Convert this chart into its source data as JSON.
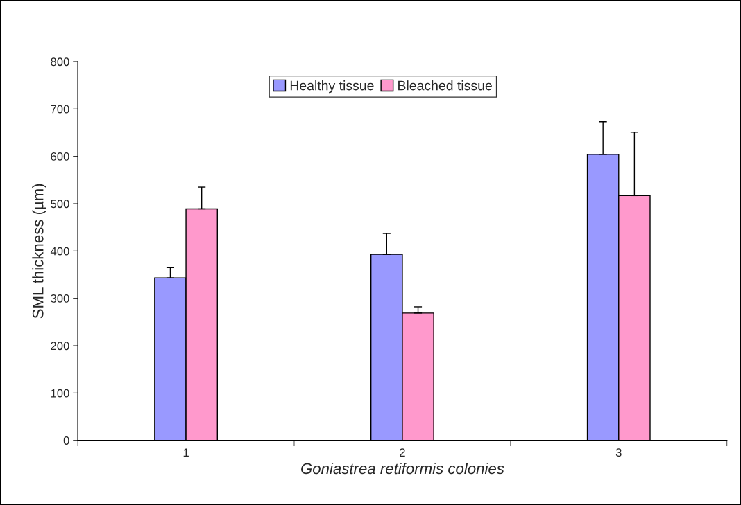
{
  "chart_data": {
    "type": "bar",
    "xlabel": "Goniastrea retiformis colonies",
    "ylabel": "SML thickness (µm)",
    "categories": [
      "1",
      "2",
      "3"
    ],
    "series": [
      {
        "name": "Healthy tissue",
        "color": "#9999ff",
        "values": [
          343,
          393,
          604
        ],
        "errors": [
          [
            343,
            365
          ],
          [
            393,
            437
          ],
          [
            604,
            673
          ]
        ]
      },
      {
        "name": "Bleached tissue",
        "color": "#ff99cc",
        "values": [
          489,
          269,
          517
        ],
        "errors": [
          [
            489,
            535
          ],
          [
            269,
            282
          ],
          [
            517,
            651
          ]
        ]
      }
    ],
    "ylim": [
      0,
      800
    ],
    "yticks": [
      0,
      100,
      200,
      300,
      400,
      500,
      600,
      700,
      800
    ],
    "grid": false,
    "legend": "top"
  }
}
